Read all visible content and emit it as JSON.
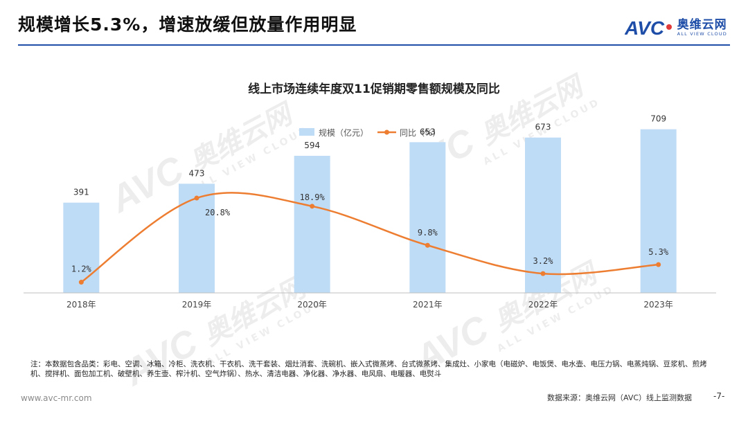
{
  "slide": {
    "title": "规模增长5.3%，增速放缓但放量作用明显",
    "note": "注：本数据包含品类：彩电、空调、冰箱、冷柜、洗衣机、干衣机、洗干套装、烟灶消套、洗碗机、嵌入式微蒸烤、台式微蒸烤、集成灶、小家电（电磁炉、电饭煲、电水壶、电压力锅、电蒸炖锅、豆浆机、煎烤机、搅拌机、面包加工机、破壁机、养生壶、榨汁机、空气炸锅）、热水、清洁电器、净化器、净水器、电风扇、电暖器、电熨斗",
    "url": "www.avc-mr.com",
    "source": "数据来源：奥维云网（AVC）线上监测数据",
    "page": "-7-"
  },
  "logo": {
    "mark": "AVC",
    "cn": "奥维云网",
    "en": "ALL VIEW CLOUD"
  },
  "watermark": {
    "cn": "奥维云网",
    "en": "ALL VIEW CLOUD",
    "mark": "AVC"
  },
  "chart_data": {
    "type": "bar",
    "title": "线上市场连续年度双11促销期零售额规模及同比",
    "legend_position": "top",
    "categories": [
      "2018年",
      "2019年",
      "2020年",
      "2021年",
      "2022年",
      "2023年"
    ],
    "series": [
      {
        "name": "规模（亿元）",
        "type": "bar",
        "color": "#bfdcf7",
        "values": [
          391,
          473,
          594,
          653,
          673,
          709
        ],
        "labels": [
          "391",
          "473",
          "594",
          "653",
          "673",
          "709"
        ]
      },
      {
        "name": "同比（%）",
        "type": "line",
        "smooth": true,
        "color": "#ed7d31",
        "values": [
          1.2,
          20.8,
          18.9,
          9.8,
          3.2,
          5.3
        ],
        "labels": [
          "1.2%",
          "20.8%",
          "18.9%",
          "9.8%",
          "3.2%",
          "5.3%"
        ]
      }
    ],
    "bar_axis_range": [
      0,
      750
    ],
    "line_axis_range": [
      0,
      25
    ],
    "grid": false
  }
}
